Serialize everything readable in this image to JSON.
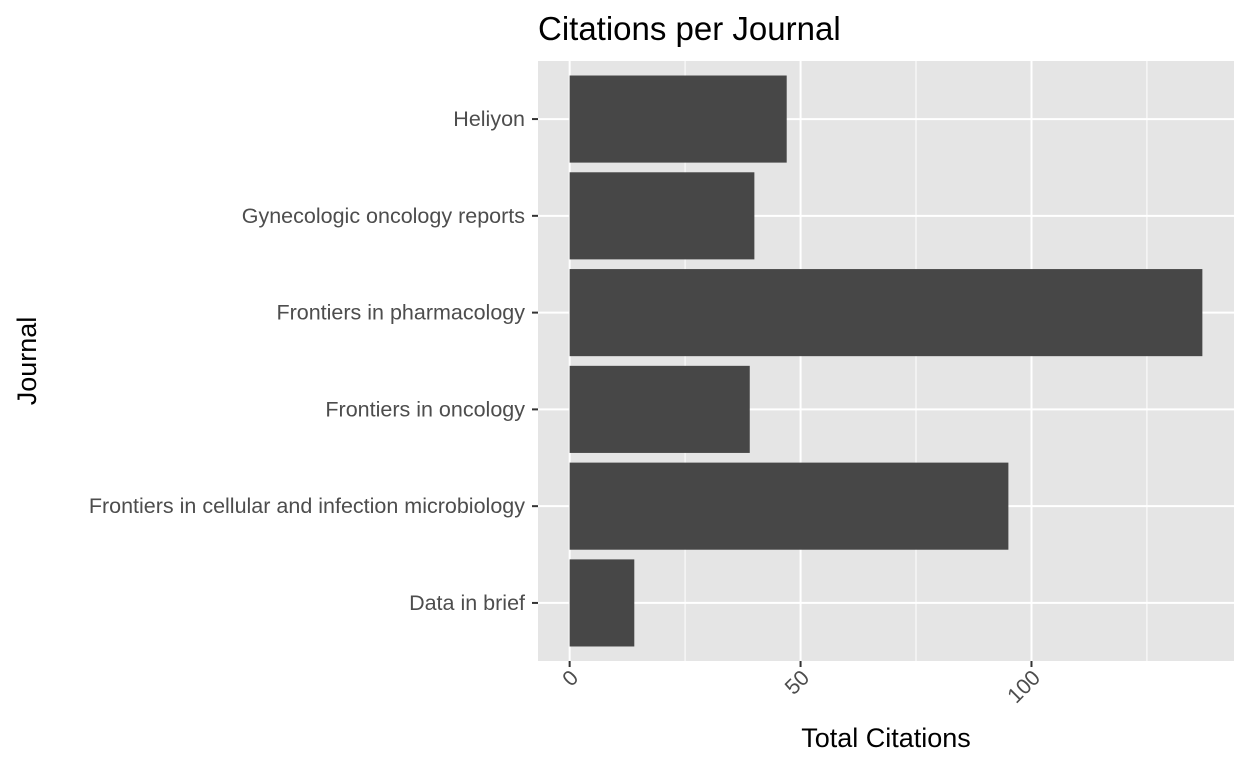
{
  "chart_data": {
    "type": "bar",
    "orientation": "horizontal",
    "title": "Citations per Journal",
    "xlabel": "Total Citations",
    "ylabel": "Journal",
    "categories": [
      "Data in brief",
      "Frontiers in cellular and infection microbiology",
      "Frontiers in oncology",
      "Frontiers in pharmacology",
      "Gynecologic oncology reports",
      "Heliyon"
    ],
    "values": [
      14,
      95,
      39,
      137,
      40,
      47
    ],
    "xlim": [
      -6.85,
      143.85
    ],
    "xticks": [
      0,
      50,
      100
    ],
    "xtick_labels": [
      "0",
      "50",
      "100"
    ],
    "grid": true,
    "legend": "none",
    "colors": {
      "bar": "#474747",
      "panel": "#e5e5e5",
      "grid": "#ffffff",
      "tick_text": "#4d4d4d",
      "text": "#000000"
    }
  }
}
